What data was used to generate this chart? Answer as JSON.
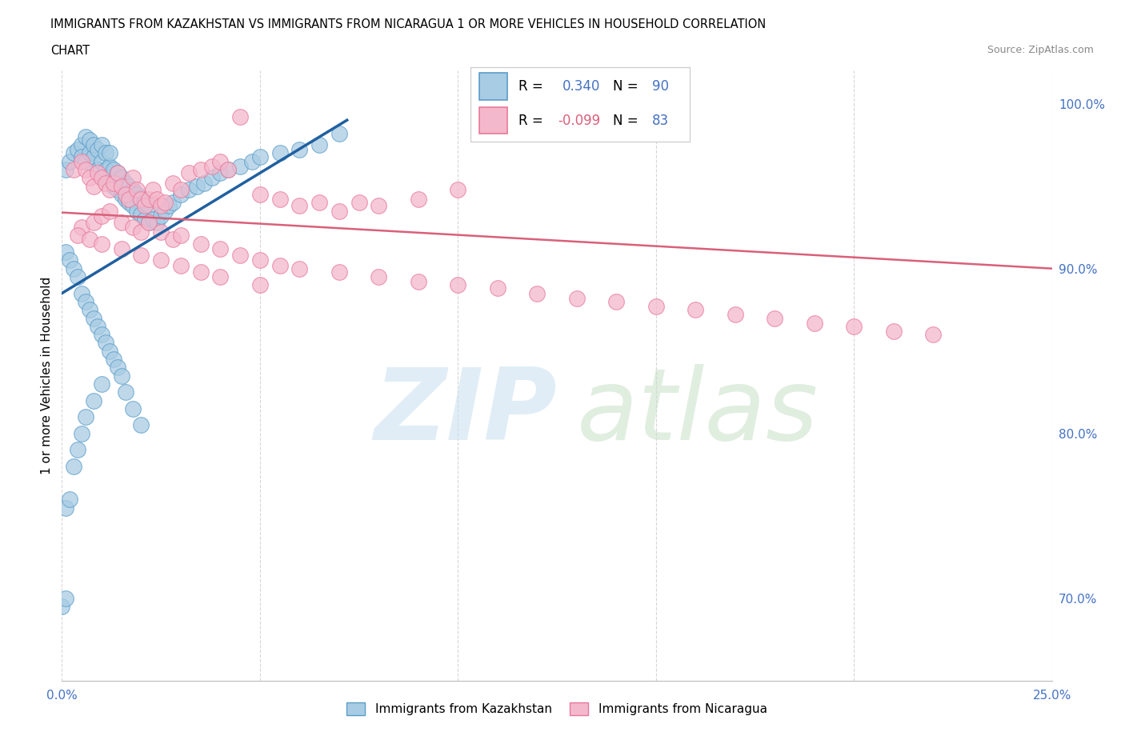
{
  "title_line1": "IMMIGRANTS FROM KAZAKHSTAN VS IMMIGRANTS FROM NICARAGUA 1 OR MORE VEHICLES IN HOUSEHOLD CORRELATION",
  "title_line2": "CHART",
  "source": "Source: ZipAtlas.com",
  "ylabel": "1 or more Vehicles in Household",
  "xlim": [
    0.0,
    0.25
  ],
  "ylim": [
    0.65,
    1.02
  ],
  "x_ticks": [
    0.0,
    0.05,
    0.1,
    0.15,
    0.2,
    0.25
  ],
  "x_tick_labels": [
    "0.0%",
    "",
    "",
    "",
    "",
    "25.0%"
  ],
  "y_tick_labels_right": [
    "70.0%",
    "80.0%",
    "90.0%",
    "100.0%"
  ],
  "y_ticks_right": [
    0.7,
    0.8,
    0.9,
    1.0
  ],
  "R_kaz": 0.34,
  "N_kaz": 90,
  "R_nic": -0.099,
  "N_nic": 83,
  "color_kaz": "#a8cce4",
  "color_nic": "#f4b8cc",
  "edge_color_kaz": "#5b9dc9",
  "edge_color_nic": "#e8799a",
  "line_color_kaz": "#2060a0",
  "line_color_nic": "#d9607a",
  "legend_box_color_kaz": "#a8cce4",
  "legend_box_color_nic": "#f4b8cc",
  "legend_edge_kaz": "#5b9dc9",
  "legend_edge_nic": "#e8799a",
  "kaz_line_x0": 0.0,
  "kaz_line_x1": 0.072,
  "kaz_line_y0": 0.885,
  "kaz_line_y1": 0.99,
  "nic_line_x0": 0.0,
  "nic_line_x1": 0.25,
  "nic_line_y0": 0.934,
  "nic_line_y1": 0.9,
  "kaz_x": [
    0.001,
    0.002,
    0.003,
    0.004,
    0.005,
    0.005,
    0.006,
    0.006,
    0.007,
    0.007,
    0.008,
    0.008,
    0.009,
    0.009,
    0.01,
    0.01,
    0.01,
    0.011,
    0.011,
    0.012,
    0.012,
    0.012,
    0.013,
    0.013,
    0.014,
    0.014,
    0.015,
    0.015,
    0.016,
    0.016,
    0.017,
    0.017,
    0.018,
    0.018,
    0.019,
    0.019,
    0.02,
    0.02,
    0.021,
    0.021,
    0.022,
    0.022,
    0.023,
    0.024,
    0.025,
    0.026,
    0.027,
    0.028,
    0.03,
    0.032,
    0.034,
    0.036,
    0.038,
    0.04,
    0.042,
    0.045,
    0.048,
    0.05,
    0.055,
    0.06,
    0.065,
    0.07,
    0.001,
    0.002,
    0.003,
    0.004,
    0.005,
    0.006,
    0.007,
    0.008,
    0.009,
    0.01,
    0.011,
    0.012,
    0.013,
    0.014,
    0.015,
    0.016,
    0.018,
    0.02,
    0.0,
    0.001,
    0.001,
    0.002,
    0.003,
    0.004,
    0.005,
    0.006,
    0.008,
    0.01
  ],
  "kaz_y": [
    0.96,
    0.965,
    0.97,
    0.972,
    0.975,
    0.968,
    0.965,
    0.98,
    0.97,
    0.978,
    0.968,
    0.975,
    0.96,
    0.972,
    0.955,
    0.965,
    0.975,
    0.96,
    0.97,
    0.955,
    0.962,
    0.97,
    0.95,
    0.96,
    0.948,
    0.958,
    0.945,
    0.955,
    0.942,
    0.952,
    0.94,
    0.95,
    0.938,
    0.948,
    0.935,
    0.945,
    0.933,
    0.943,
    0.93,
    0.94,
    0.928,
    0.938,
    0.93,
    0.928,
    0.932,
    0.935,
    0.938,
    0.94,
    0.945,
    0.948,
    0.95,
    0.952,
    0.955,
    0.958,
    0.96,
    0.962,
    0.965,
    0.968,
    0.97,
    0.972,
    0.975,
    0.982,
    0.91,
    0.905,
    0.9,
    0.895,
    0.885,
    0.88,
    0.875,
    0.87,
    0.865,
    0.86,
    0.855,
    0.85,
    0.845,
    0.84,
    0.835,
    0.825,
    0.815,
    0.805,
    0.695,
    0.7,
    0.755,
    0.76,
    0.78,
    0.79,
    0.8,
    0.81,
    0.82,
    0.83
  ],
  "nic_x": [
    0.003,
    0.005,
    0.006,
    0.007,
    0.008,
    0.009,
    0.01,
    0.011,
    0.012,
    0.013,
    0.014,
    0.015,
    0.016,
    0.017,
    0.018,
    0.019,
    0.02,
    0.021,
    0.022,
    0.023,
    0.024,
    0.025,
    0.026,
    0.028,
    0.03,
    0.032,
    0.035,
    0.038,
    0.04,
    0.042,
    0.045,
    0.05,
    0.055,
    0.06,
    0.065,
    0.07,
    0.075,
    0.08,
    0.09,
    0.1,
    0.005,
    0.008,
    0.01,
    0.012,
    0.015,
    0.018,
    0.02,
    0.022,
    0.025,
    0.028,
    0.03,
    0.035,
    0.04,
    0.045,
    0.05,
    0.055,
    0.06,
    0.07,
    0.08,
    0.09,
    0.1,
    0.11,
    0.12,
    0.13,
    0.14,
    0.15,
    0.16,
    0.17,
    0.18,
    0.19,
    0.2,
    0.21,
    0.22,
    0.004,
    0.007,
    0.01,
    0.015,
    0.02,
    0.025,
    0.03,
    0.035,
    0.04,
    0.05
  ],
  "nic_y": [
    0.96,
    0.965,
    0.96,
    0.955,
    0.95,
    0.958,
    0.955,
    0.952,
    0.948,
    0.952,
    0.958,
    0.95,
    0.945,
    0.942,
    0.955,
    0.948,
    0.942,
    0.938,
    0.942,
    0.948,
    0.942,
    0.938,
    0.94,
    0.952,
    0.948,
    0.958,
    0.96,
    0.962,
    0.965,
    0.96,
    0.992,
    0.945,
    0.942,
    0.938,
    0.94,
    0.935,
    0.94,
    0.938,
    0.942,
    0.948,
    0.925,
    0.928,
    0.932,
    0.935,
    0.928,
    0.925,
    0.922,
    0.928,
    0.922,
    0.918,
    0.92,
    0.915,
    0.912,
    0.908,
    0.905,
    0.902,
    0.9,
    0.898,
    0.895,
    0.892,
    0.89,
    0.888,
    0.885,
    0.882,
    0.88,
    0.877,
    0.875,
    0.872,
    0.87,
    0.867,
    0.865,
    0.862,
    0.86,
    0.92,
    0.918,
    0.915,
    0.912,
    0.908,
    0.905,
    0.902,
    0.898,
    0.895,
    0.89
  ]
}
